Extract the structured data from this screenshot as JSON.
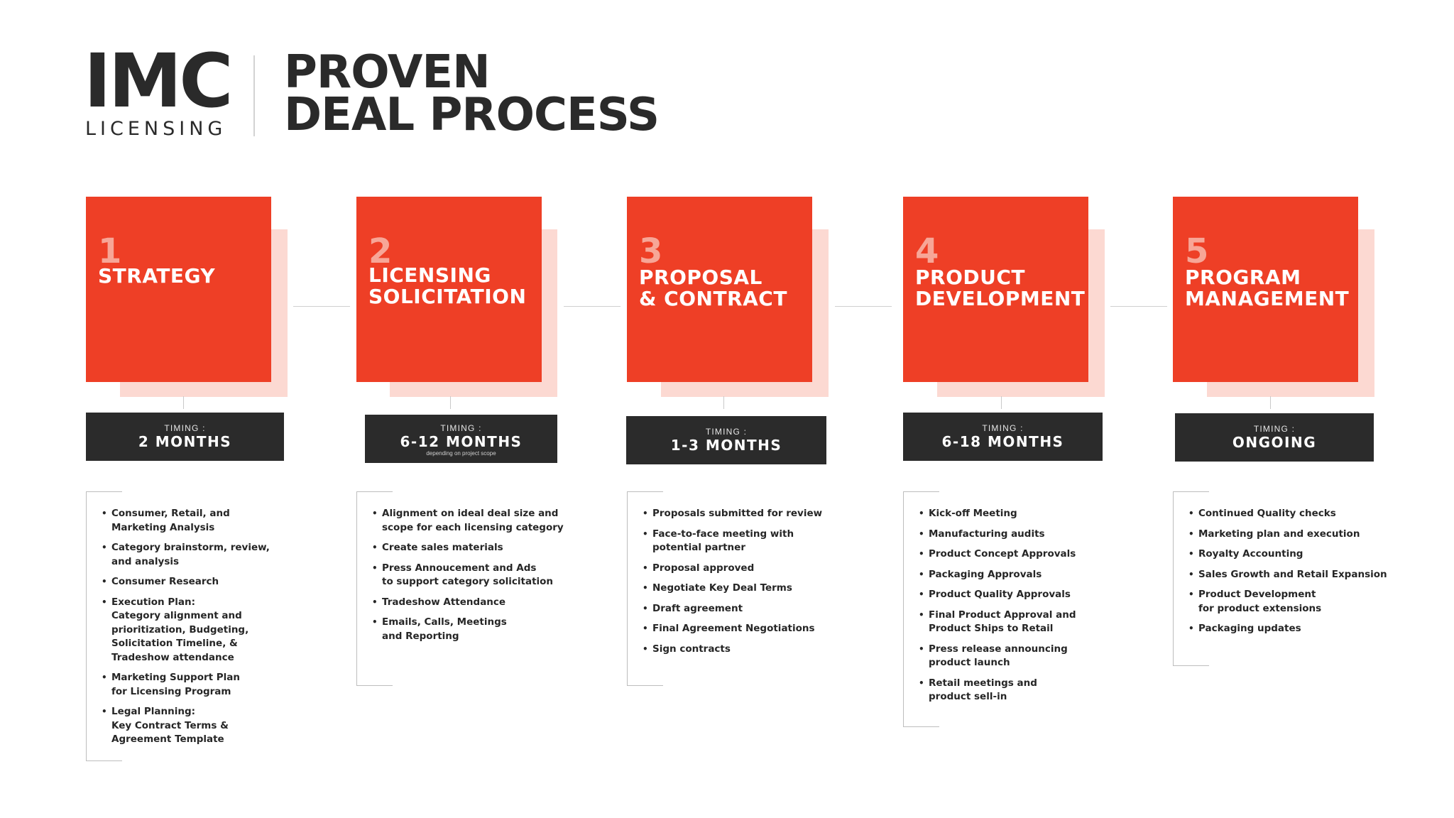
{
  "logo": {
    "main": "IMC",
    "sub": "LICENSING"
  },
  "title": {
    "line1": "PROVEN",
    "line2": "DEAL PROCESS"
  },
  "colors": {
    "accent": "#ee3f26",
    "accent_light": "#fcd9d2",
    "dark": "#2b2b2b"
  },
  "steps": [
    {
      "number": "1",
      "title_lines": [
        "STRATEGY"
      ],
      "timing_label": "TIMING :",
      "timing_value": "2 MONTHS",
      "timing_note": "",
      "items": [
        "Consumer, Retail, and\nMarketing Analysis",
        "Category brainstorm, review,\n and analysis",
        "Consumer Research",
        "Execution Plan:\nCategory alignment and\nprioritization, Budgeting,\nSolicitation Timeline, &\nTradeshow attendance",
        "Marketing Support Plan\nfor Licensing Program",
        "Legal Planning:\nKey Contract Terms &\nAgreement Template"
      ]
    },
    {
      "number": "2",
      "title_lines": [
        "LICENSING",
        "SOLICITATION"
      ],
      "timing_label": "TIMING :",
      "timing_value": "6-12 MONTHS",
      "timing_note": "depending on project scope",
      "items": [
        "Alignment on ideal deal size and\nscope for each licensing category",
        "Create sales materials",
        "Press Annoucement and Ads\nto support category solicitation",
        "Tradeshow Attendance",
        "Emails, Calls, Meetings\nand Reporting"
      ]
    },
    {
      "number": "3",
      "title_lines": [
        "PROPOSAL",
        "& CONTRACT"
      ],
      "timing_label": "TIMING :",
      "timing_value": "1-3 MONTHS",
      "timing_note": "",
      "items": [
        "Proposals submitted for review",
        "Face-to-face meeting with\npotential partner",
        "Proposal approved",
        "Negotiate Key Deal Terms",
        "Draft agreement",
        "Final Agreement Negotiations",
        "Sign contracts"
      ]
    },
    {
      "number": "4",
      "title_lines": [
        "PRODUCT",
        "DEVELOPMENT"
      ],
      "timing_label": "TIMING :",
      "timing_value": "6-18 MONTHS",
      "timing_note": "",
      "items": [
        "Kick-off Meeting",
        "Manufacturing audits",
        "Product Concept Approvals",
        "Packaging Approvals",
        "Product Quality Approvals",
        "Final Product Approval and\nProduct Ships to Retail",
        "Press release announcing\nproduct launch",
        "Retail meetings and\nproduct sell-in"
      ]
    },
    {
      "number": "5",
      "title_lines": [
        "PROGRAM",
        "MANAGEMENT"
      ],
      "timing_label": "TIMING :",
      "timing_value": "ONGOING",
      "timing_note": "",
      "items": [
        "Continued Quality checks",
        "Marketing plan and execution",
        "Royalty Accounting",
        "Sales Growth and Retail Expansion",
        "Product Development\nfor product extensions",
        "Packaging updates"
      ]
    }
  ]
}
